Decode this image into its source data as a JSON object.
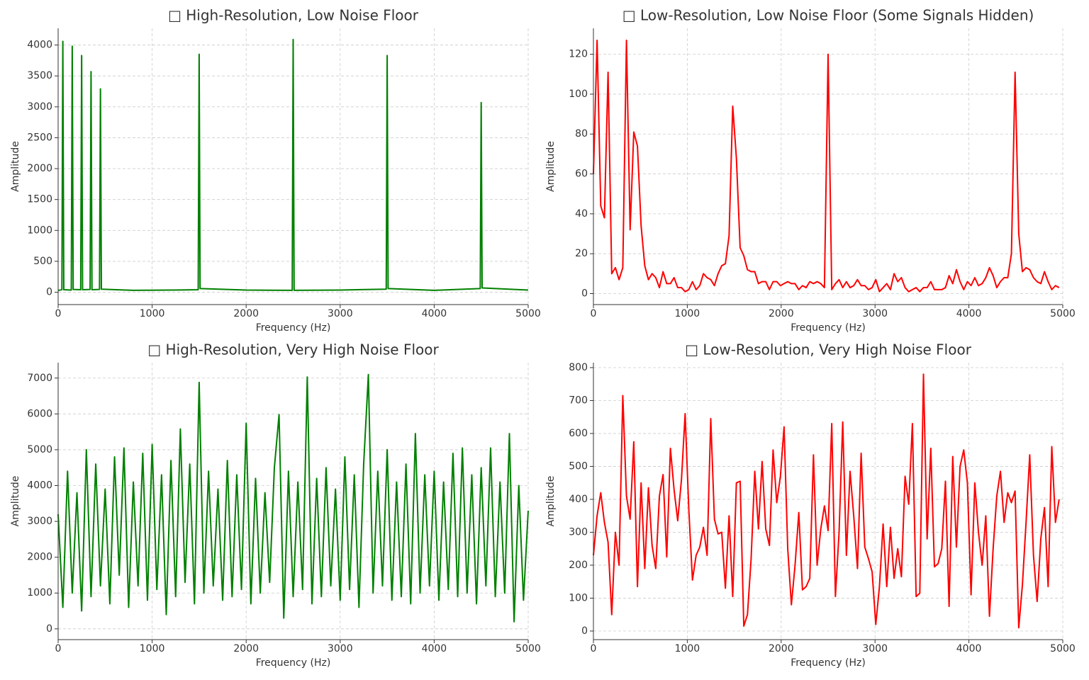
{
  "chart_data": [
    {
      "type": "line",
      "title": "□ High-Resolution, Low Noise Floor",
      "xlabel": "Frequency (Hz)",
      "ylabel": "Amplitude",
      "color": "#008000",
      "grid": true,
      "x": [
        0,
        40,
        50,
        60,
        140,
        150,
        160,
        240,
        250,
        260,
        340,
        350,
        360,
        440,
        450,
        460,
        800,
        1200,
        1490,
        1500,
        1510,
        2000,
        2490,
        2500,
        2510,
        3000,
        3490,
        3500,
        3510,
        4000,
        4490,
        4500,
        4510,
        5000
      ],
      "values": [
        30,
        40,
        4060,
        40,
        35,
        3980,
        45,
        40,
        3830,
        40,
        45,
        3570,
        40,
        45,
        3290,
        50,
        30,
        35,
        40,
        3850,
        60,
        35,
        30,
        4090,
        30,
        35,
        50,
        3830,
        60,
        30,
        60,
        3070,
        70,
        35
      ],
      "xlim": [
        0,
        5000
      ],
      "xticks": [
        0,
        1000,
        2000,
        3000,
        4000,
        5000
      ],
      "ylim": [
        -200,
        4270
      ],
      "yticks": [
        0,
        500,
        1000,
        1500,
        2000,
        2500,
        3000,
        3500,
        4000
      ]
    },
    {
      "type": "line",
      "title": "□ Low-Resolution, Low Noise Floor (Some Signals Hidden)",
      "xlabel": "Frequency (Hz)",
      "ylabel": "Amplitude",
      "color": "#ff0000",
      "grid": true,
      "x": [
        0,
        39,
        78,
        117,
        156,
        195,
        234,
        273,
        313,
        352,
        391,
        430,
        469,
        508,
        547,
        586,
        625,
        664,
        703,
        742,
        781,
        820,
        859,
        898,
        938,
        977,
        1016,
        1055,
        1094,
        1133,
        1172,
        1211,
        1250,
        1289,
        1328,
        1367,
        1406,
        1445,
        1484,
        1523,
        1563,
        1602,
        1641,
        1680,
        1719,
        1758,
        1797,
        1836,
        1875,
        1914,
        1953,
        1992,
        2031,
        2070,
        2109,
        2148,
        2188,
        2227,
        2266,
        2305,
        2344,
        2383,
        2422,
        2461,
        2500,
        2539,
        2578,
        2617,
        2656,
        2695,
        2734,
        2773,
        2813,
        2852,
        2891,
        2930,
        2969,
        3008,
        3047,
        3086,
        3125,
        3164,
        3203,
        3242,
        3281,
        3320,
        3359,
        3398,
        3438,
        3477,
        3516,
        3555,
        3594,
        3633,
        3672,
        3711,
        3750,
        3789,
        3828,
        3867,
        3906,
        3945,
        3984,
        4023,
        4063,
        4102,
        4141,
        4180,
        4219,
        4258,
        4297,
        4336,
        4375,
        4414,
        4453,
        4492,
        4531,
        4570,
        4609,
        4648,
        4688,
        4727,
        4766,
        4805,
        4844,
        4883,
        4922,
        4961
      ],
      "values": [
        60,
        127,
        44,
        38,
        111,
        10,
        13,
        7,
        13,
        127,
        32,
        81,
        74,
        34,
        14,
        7,
        10,
        8,
        3,
        11,
        5,
        5,
        8,
        3,
        3,
        1,
        2,
        6,
        2,
        4,
        10,
        8,
        7,
        4,
        10,
        14,
        15,
        29,
        94,
        68,
        23,
        19,
        12,
        11,
        11,
        5,
        6,
        6,
        2,
        6,
        6,
        4,
        5,
        6,
        5,
        5,
        2,
        4,
        3,
        6,
        5,
        6,
        5,
        3,
        120,
        2,
        5,
        7,
        3,
        6,
        3,
        4,
        7,
        4,
        4,
        2,
        3,
        7,
        1,
        3,
        5,
        2,
        10,
        6,
        8,
        3,
        1,
        2,
        3,
        1,
        3,
        3,
        6,
        2,
        2,
        2,
        3,
        9,
        5,
        12,
        6,
        2,
        6,
        4,
        8,
        4,
        5,
        8,
        13,
        9,
        3,
        6,
        8,
        8,
        20,
        111,
        30,
        11,
        13,
        12,
        8,
        6,
        5,
        11,
        6,
        2,
        4,
        3
      ],
      "xlim": [
        0,
        5000
      ],
      "xticks": [
        0,
        1000,
        2000,
        3000,
        4000,
        5000
      ],
      "ylim": [
        -5.5,
        133
      ],
      "yticks": [
        0,
        20,
        40,
        60,
        80,
        100,
        120
      ]
    },
    {
      "type": "line",
      "title": "□ High-Resolution, Very High Noise Floor",
      "xlabel": "Frequency (Hz)",
      "ylabel": "Amplitude",
      "color": "#008000",
      "grid": true,
      "x": [
        0,
        50,
        100,
        150,
        200,
        250,
        300,
        350,
        400,
        450,
        500,
        550,
        600,
        650,
        700,
        750,
        800,
        850,
        900,
        950,
        1000,
        1050,
        1100,
        1150,
        1200,
        1250,
        1300,
        1350,
        1400,
        1450,
        1500,
        1550,
        1600,
        1650,
        1700,
        1750,
        1800,
        1850,
        1900,
        1950,
        2000,
        2050,
        2100,
        2150,
        2200,
        2250,
        2300,
        2350,
        2400,
        2450,
        2500,
        2550,
        2600,
        2650,
        2700,
        2750,
        2800,
        2850,
        2900,
        2950,
        3000,
        3050,
        3100,
        3150,
        3200,
        3250,
        3300,
        3350,
        3400,
        3450,
        3500,
        3550,
        3600,
        3650,
        3700,
        3750,
        3800,
        3850,
        3900,
        3950,
        4000,
        4050,
        4100,
        4150,
        4200,
        4250,
        4300,
        4350,
        4400,
        4450,
        4500,
        4550,
        4600,
        4650,
        4700,
        4750,
        4800,
        4850,
        4900,
        4950,
        5000
      ],
      "values": [
        3200,
        600,
        4400,
        1000,
        3800,
        500,
        5000,
        900,
        4600,
        1200,
        3900,
        700,
        4800,
        1500,
        5050,
        600,
        4100,
        1200,
        4900,
        800,
        5150,
        1100,
        4300,
        400,
        4700,
        900,
        5580,
        1300,
        4600,
        700,
        6880,
        1000,
        4400,
        1200,
        3900,
        800,
        4700,
        900,
        4300,
        1100,
        5740,
        700,
        4200,
        1000,
        3800,
        1300,
        4500,
        5980,
        300,
        4400,
        900,
        4100,
        1100,
        7030,
        700,
        4200,
        900,
        4500,
        1200,
        3900,
        800,
        4800,
        1100,
        4300,
        600,
        4600,
        7100,
        1000,
        4400,
        1200,
        5000,
        800,
        4100,
        900,
        4600,
        700,
        5450,
        1000,
        4300,
        1200,
        4400,
        800,
        4100,
        1100,
        4900,
        900,
        5050,
        1000,
        4300,
        700,
        4500,
        1200,
        5050,
        900,
        4100,
        1000,
        5450,
        200,
        4000,
        800,
        3300
      ],
      "xlim": [
        0,
        5000
      ],
      "xticks": [
        0,
        1000,
        2000,
        3000,
        4000,
        5000
      ],
      "ylim": [
        -300,
        7430
      ],
      "yticks": [
        0,
        1000,
        2000,
        3000,
        4000,
        5000,
        6000,
        7000
      ]
    },
    {
      "type": "line",
      "title": "□ Low-Resolution, Very High Noise Floor",
      "xlabel": "Frequency (Hz)",
      "ylabel": "Amplitude",
      "color": "#ff0000",
      "grid": true,
      "x": [
        0,
        39,
        78,
        117,
        156,
        195,
        234,
        273,
        313,
        352,
        391,
        430,
        469,
        508,
        547,
        586,
        625,
        664,
        703,
        742,
        781,
        820,
        859,
        898,
        938,
        977,
        1016,
        1055,
        1094,
        1133,
        1172,
        1211,
        1250,
        1289,
        1328,
        1367,
        1406,
        1445,
        1484,
        1523,
        1563,
        1602,
        1641,
        1680,
        1719,
        1758,
        1797,
        1836,
        1875,
        1914,
        1953,
        1992,
        2031,
        2070,
        2109,
        2148,
        2188,
        2227,
        2266,
        2305,
        2344,
        2383,
        2422,
        2461,
        2500,
        2539,
        2578,
        2617,
        2656,
        2695,
        2734,
        2773,
        2813,
        2852,
        2891,
        2930,
        2969,
        3008,
        3047,
        3086,
        3125,
        3164,
        3203,
        3242,
        3281,
        3320,
        3359,
        3398,
        3438,
        3477,
        3516,
        3555,
        3594,
        3633,
        3672,
        3711,
        3750,
        3789,
        3828,
        3867,
        3906,
        3945,
        3984,
        4023,
        4063,
        4102,
        4141,
        4180,
        4219,
        4258,
        4297,
        4336,
        4375,
        4414,
        4453,
        4492,
        4531,
        4570,
        4609,
        4648,
        4688,
        4727,
        4766,
        4805,
        4844,
        4883,
        4922,
        4961
      ],
      "values": [
        230,
        350,
        420,
        330,
        270,
        50,
        300,
        200,
        715,
        410,
        340,
        575,
        135,
        450,
        190,
        435,
        260,
        190,
        410,
        475,
        225,
        555,
        430,
        335,
        460,
        660,
        370,
        155,
        230,
        255,
        315,
        230,
        645,
        340,
        295,
        300,
        130,
        350,
        105,
        450,
        455,
        15,
        50,
        220,
        485,
        310,
        515,
        310,
        260,
        550,
        390,
        470,
        620,
        250,
        80,
        200,
        360,
        125,
        135,
        160,
        535,
        200,
        310,
        380,
        305,
        630,
        105,
        300,
        635,
        230,
        485,
        350,
        190,
        540,
        255,
        220,
        180,
        20,
        135,
        325,
        135,
        315,
        160,
        250,
        165,
        470,
        385,
        630,
        105,
        115,
        780,
        280,
        555,
        195,
        205,
        250,
        455,
        75,
        530,
        255,
        500,
        550,
        450,
        110,
        450,
        300,
        200,
        350,
        45,
        250,
        410,
        485,
        330,
        420,
        390,
        425,
        10,
        140,
        330,
        535,
        230,
        90,
        280,
        375,
        135,
        560,
        330,
        400
      ],
      "xlim": [
        0,
        5000
      ],
      "xticks": [
        0,
        1000,
        2000,
        3000,
        4000,
        5000
      ],
      "ylim": [
        -26,
        815
      ],
      "yticks": [
        0,
        100,
        200,
        300,
        400,
        500,
        600,
        700,
        800
      ]
    }
  ]
}
